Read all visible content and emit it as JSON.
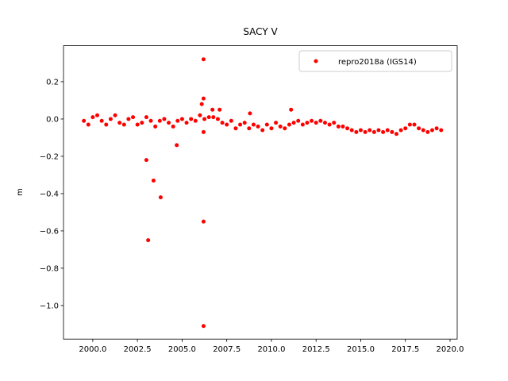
{
  "chart_data": {
    "type": "scatter",
    "title": "SACY V",
    "y_label": "m",
    "legend_position": "upper right",
    "series": [
      {
        "name": "repro2018a (IGS14)",
        "color": "#ff0000",
        "x": [
          1999.5,
          1999.75,
          2000.0,
          2000.25,
          2000.5,
          2000.75,
          2001.0,
          2001.25,
          2001.5,
          2001.75,
          2002.0,
          2002.25,
          2002.5,
          2002.75,
          2003.0,
          2003.25,
          2003.5,
          2003.75,
          2004.0,
          2004.25,
          2004.5,
          2004.75,
          2005.0,
          2005.25,
          2005.5,
          2005.75,
          2006.0,
          2006.25,
          2006.5,
          2006.75,
          2007.0,
          2007.25,
          2007.5,
          2007.75,
          2008.0,
          2008.25,
          2008.5,
          2008.75,
          2009.0,
          2009.25,
          2009.5,
          2009.75,
          2010.0,
          2010.25,
          2010.5,
          2010.75,
          2011.0,
          2011.25,
          2011.5,
          2011.75,
          2012.0,
          2012.25,
          2012.5,
          2012.75,
          2013.0,
          2013.25,
          2013.5,
          2013.75,
          2014.0,
          2014.25,
          2014.5,
          2014.75,
          2015.0,
          2015.25,
          2015.5,
          2015.75,
          2016.0,
          2016.25,
          2016.5,
          2016.75,
          2017.0,
          2017.25,
          2017.5,
          2017.75,
          2018.0,
          2018.25,
          2018.5,
          2018.75,
          2019.0,
          2019.25,
          2019.5,
          2003.0,
          2003.4,
          2003.8,
          2003.1,
          2004.7,
          2006.2,
          2006.2,
          2006.1,
          2006.2,
          2006.2,
          2006.2,
          2006.7,
          2007.1,
          2008.8,
          2011.1
        ],
        "values": [
          -0.01,
          -0.03,
          0.01,
          0.02,
          -0.01,
          -0.03,
          0.0,
          0.02,
          -0.02,
          -0.03,
          0.0,
          0.01,
          -0.03,
          -0.02,
          0.01,
          -0.01,
          -0.04,
          -0.01,
          0.0,
          -0.02,
          -0.04,
          -0.01,
          0.0,
          -0.02,
          0.0,
          -0.01,
          0.02,
          0.0,
          0.01,
          0.01,
          0.0,
          -0.02,
          -0.03,
          -0.01,
          -0.05,
          -0.03,
          -0.02,
          -0.05,
          -0.03,
          -0.04,
          -0.06,
          -0.03,
          -0.05,
          -0.02,
          -0.04,
          -0.05,
          -0.03,
          -0.02,
          -0.01,
          -0.03,
          -0.02,
          -0.01,
          -0.02,
          -0.01,
          -0.02,
          -0.03,
          -0.02,
          -0.04,
          -0.04,
          -0.05,
          -0.06,
          -0.07,
          -0.06,
          -0.07,
          -0.06,
          -0.07,
          -0.06,
          -0.07,
          -0.06,
          -0.07,
          -0.08,
          -0.06,
          -0.05,
          -0.03,
          -0.03,
          -0.05,
          -0.06,
          -0.07,
          -0.06,
          -0.05,
          -0.06,
          -0.22,
          -0.33,
          -0.42,
          -0.65,
          -0.14,
          0.32,
          0.11,
          0.08,
          -0.07,
          -0.55,
          -1.11,
          0.05,
          0.05,
          0.03,
          0.05
        ]
      }
    ],
    "xlim": [
      1998.36,
      2020.4
    ],
    "ylim": [
      -1.18,
      0.393
    ],
    "xticks": [
      {
        "value": 2000,
        "label": "2000.0"
      },
      {
        "value": 2002.5,
        "label": "2002.5"
      },
      {
        "value": 2005,
        "label": "2005.0"
      },
      {
        "value": 2007.5,
        "label": "2007.5"
      },
      {
        "value": 2010,
        "label": "2010.0"
      },
      {
        "value": 2012.5,
        "label": "2012.5"
      },
      {
        "value": 2015,
        "label": "2015.0"
      },
      {
        "value": 2017.5,
        "label": "2017.5"
      },
      {
        "value": 2020,
        "label": "2020.0"
      }
    ],
    "yticks": [
      {
        "value": -1.0,
        "label": "−1.0"
      },
      {
        "value": -0.8,
        "label": "−0.8"
      },
      {
        "value": -0.6,
        "label": "−0.6"
      },
      {
        "value": -0.4,
        "label": "−0.4"
      },
      {
        "value": -0.2,
        "label": "−0.2"
      },
      {
        "value": 0,
        "label": "0.0"
      },
      0.2
    ]
  }
}
